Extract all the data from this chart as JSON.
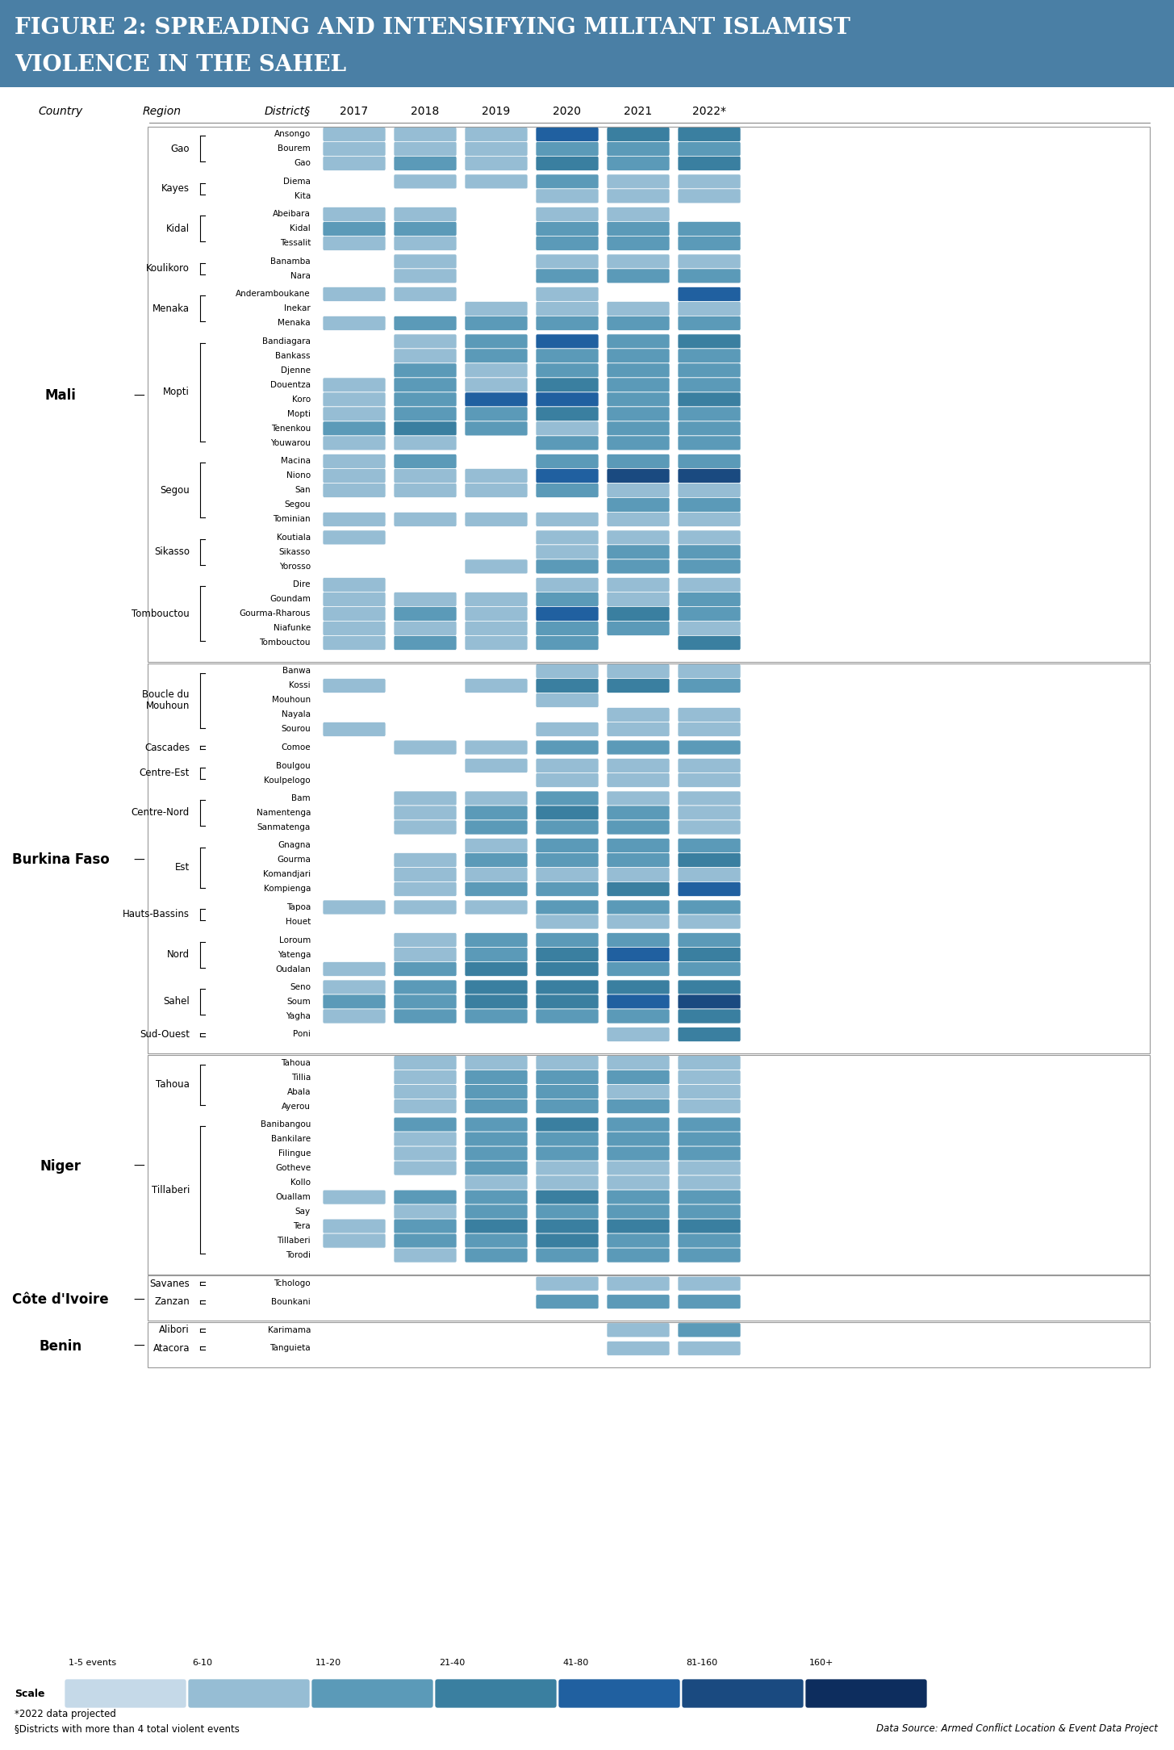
{
  "title_bg": "#4a7fa5",
  "title_fg": "#ffffff",
  "title_line1": "FIGURE 2: SPREADING AND INTENSIFYING MILITANT ISLAMIST",
  "title_line2": "VIOLENCE IN THE SAHEL",
  "years": [
    "2017",
    "2018",
    "2019",
    "2020",
    "2021",
    "2022*"
  ],
  "footnote1": "*2022 data projected",
  "footnote2": "§Districts with more than 4 total violent events",
  "datasource": "Data Source: Armed Conflict Location & Event Data Project",
  "scale_labels": [
    "1-5 events",
    "6-10",
    "11-20",
    "21-40",
    "41-80",
    "81-160",
    "160+"
  ],
  "scale_colors": [
    "#c5d9e8",
    "#96bdd4",
    "#5b9ab8",
    "#3a7fa0",
    "#2060a0",
    "#1a4a80",
    "#0d2d5e"
  ],
  "color_map": [
    null,
    "#c5d9e8",
    "#96bdd4",
    "#5b9ab8",
    "#3a7fa0",
    "#2060a0",
    "#1a4a80",
    "#0d2d5e"
  ],
  "countries": [
    {
      "name": "Mali",
      "regions": [
        {
          "name": "Gao",
          "districts": [
            {
              "name": "Ansongo",
              "values": [
                2,
                2,
                2,
                5,
                4,
                4
              ]
            },
            {
              "name": "Bourem",
              "values": [
                2,
                2,
                2,
                3,
                3,
                3
              ]
            },
            {
              "name": "Gao",
              "values": [
                2,
                3,
                2,
                4,
                3,
                4
              ]
            }
          ]
        },
        {
          "name": "Kayes",
          "districts": [
            {
              "name": "Diema",
              "values": [
                0,
                2,
                2,
                3,
                2,
                2
              ]
            },
            {
              "name": "Kita",
              "values": [
                0,
                0,
                0,
                2,
                2,
                2
              ]
            }
          ]
        },
        {
          "name": "Kidal",
          "districts": [
            {
              "name": "Abeibara",
              "values": [
                2,
                2,
                0,
                2,
                2,
                0
              ]
            },
            {
              "name": "Kidal",
              "values": [
                3,
                3,
                0,
                3,
                3,
                3
              ]
            },
            {
              "name": "Tessalit",
              "values": [
                2,
                2,
                0,
                3,
                3,
                3
              ]
            }
          ]
        },
        {
          "name": "Koulikoro",
          "districts": [
            {
              "name": "Banamba",
              "values": [
                0,
                2,
                0,
                2,
                2,
                2
              ]
            },
            {
              "name": "Nara",
              "values": [
                0,
                2,
                0,
                3,
                3,
                3
              ]
            }
          ]
        },
        {
          "name": "Menaka",
          "districts": [
            {
              "name": "Anderamboukane",
              "values": [
                2,
                2,
                0,
                2,
                0,
                5
              ]
            },
            {
              "name": "Inekar",
              "values": [
                0,
                0,
                2,
                2,
                2,
                2
              ]
            },
            {
              "name": "Menaka",
              "values": [
                2,
                3,
                3,
                3,
                3,
                3
              ]
            }
          ]
        },
        {
          "name": "Mopti",
          "districts": [
            {
              "name": "Bandiagara",
              "values": [
                0,
                2,
                3,
                5,
                3,
                4
              ]
            },
            {
              "name": "Bankass",
              "values": [
                0,
                2,
                3,
                3,
                3,
                3
              ]
            },
            {
              "name": "Djenne",
              "values": [
                0,
                3,
                2,
                3,
                3,
                3
              ]
            },
            {
              "name": "Douentza",
              "values": [
                2,
                3,
                2,
                4,
                3,
                3
              ]
            },
            {
              "name": "Koro",
              "values": [
                2,
                3,
                5,
                5,
                3,
                4
              ]
            },
            {
              "name": "Mopti",
              "values": [
                2,
                3,
                3,
                4,
                3,
                3
              ]
            },
            {
              "name": "Tenenkou",
              "values": [
                3,
                4,
                3,
                2,
                3,
                3
              ]
            },
            {
              "name": "Youwarou",
              "values": [
                2,
                2,
                0,
                3,
                3,
                3
              ]
            }
          ]
        },
        {
          "name": "Segou",
          "districts": [
            {
              "name": "Macina",
              "values": [
                2,
                3,
                0,
                3,
                3,
                3
              ]
            },
            {
              "name": "Niono",
              "values": [
                2,
                2,
                2,
                5,
                6,
                6
              ]
            },
            {
              "name": "San",
              "values": [
                2,
                2,
                2,
                3,
                2,
                2
              ]
            },
            {
              "name": "Segou",
              "values": [
                0,
                0,
                0,
                0,
                3,
                3
              ]
            },
            {
              "name": "Tominian",
              "values": [
                2,
                2,
                2,
                2,
                2,
                2
              ]
            }
          ]
        },
        {
          "name": "Sikasso",
          "districts": [
            {
              "name": "Koutiala",
              "values": [
                2,
                0,
                0,
                2,
                2,
                2
              ]
            },
            {
              "name": "Sikasso",
              "values": [
                0,
                0,
                0,
                2,
                3,
                3
              ]
            },
            {
              "name": "Yorosso",
              "values": [
                0,
                0,
                2,
                3,
                3,
                3
              ]
            }
          ]
        },
        {
          "name": "Tombouctou",
          "districts": [
            {
              "name": "Dire",
              "values": [
                2,
                0,
                0,
                2,
                2,
                2
              ]
            },
            {
              "name": "Goundam",
              "values": [
                2,
                2,
                2,
                3,
                2,
                3
              ]
            },
            {
              "name": "Gourma-Rharous",
              "values": [
                2,
                3,
                2,
                5,
                4,
                3
              ]
            },
            {
              "name": "Niafunke",
              "values": [
                2,
                2,
                2,
                3,
                3,
                2
              ]
            },
            {
              "name": "Tombouctou",
              "values": [
                2,
                3,
                2,
                3,
                0,
                4
              ]
            }
          ]
        }
      ]
    },
    {
      "name": "Burkina Faso",
      "regions": [
        {
          "name": "Boucle du\nMouhoun",
          "districts": [
            {
              "name": "Banwa",
              "values": [
                0,
                0,
                0,
                2,
                2,
                2
              ]
            },
            {
              "name": "Kossi",
              "values": [
                2,
                0,
                2,
                4,
                4,
                3
              ]
            },
            {
              "name": "Mouhoun",
              "values": [
                0,
                0,
                0,
                2,
                0,
                0
              ]
            },
            {
              "name": "Nayala",
              "values": [
                0,
                0,
                0,
                0,
                2,
                2
              ]
            },
            {
              "name": "Sourou",
              "values": [
                2,
                0,
                0,
                2,
                2,
                2
              ]
            }
          ]
        },
        {
          "name": "Cascades",
          "districts": [
            {
              "name": "Comoe",
              "values": [
                0,
                2,
                2,
                3,
                3,
                3
              ]
            }
          ]
        },
        {
          "name": "Centre-Est",
          "districts": [
            {
              "name": "Boulgou",
              "values": [
                0,
                0,
                2,
                2,
                2,
                2
              ]
            },
            {
              "name": "Koulpelogo",
              "values": [
                0,
                0,
                0,
                2,
                2,
                2
              ]
            }
          ]
        },
        {
          "name": "Centre-Nord",
          "districts": [
            {
              "name": "Bam",
              "values": [
                0,
                2,
                2,
                3,
                2,
                2
              ]
            },
            {
              "name": "Namentenga",
              "values": [
                0,
                2,
                3,
                4,
                3,
                2
              ]
            },
            {
              "name": "Sanmatenga",
              "values": [
                0,
                2,
                3,
                3,
                3,
                2
              ]
            }
          ]
        },
        {
          "name": "Est",
          "districts": [
            {
              "name": "Gnagna",
              "values": [
                0,
                0,
                2,
                3,
                3,
                3
              ]
            },
            {
              "name": "Gourma",
              "values": [
                0,
                2,
                3,
                3,
                3,
                4
              ]
            },
            {
              "name": "Komandjari",
              "values": [
                0,
                2,
                2,
                2,
                2,
                2
              ]
            },
            {
              "name": "Kompienga",
              "values": [
                0,
                2,
                3,
                3,
                4,
                5
              ]
            }
          ]
        },
        {
          "name": "Hauts-Bassins",
          "districts": [
            {
              "name": "Tapoa",
              "values": [
                2,
                2,
                2,
                3,
                3,
                3
              ]
            },
            {
              "name": "Houet",
              "values": [
                0,
                0,
                0,
                2,
                2,
                2
              ]
            }
          ]
        },
        {
          "name": "Nord",
          "districts": [
            {
              "name": "Loroum",
              "values": [
                0,
                2,
                3,
                3,
                3,
                3
              ]
            },
            {
              "name": "Yatenga",
              "values": [
                0,
                2,
                3,
                4,
                5,
                4
              ]
            },
            {
              "name": "Oudalan",
              "values": [
                2,
                3,
                4,
                4,
                3,
                3
              ]
            }
          ]
        },
        {
          "name": "Sahel",
          "districts": [
            {
              "name": "Seno",
              "values": [
                2,
                3,
                4,
                4,
                4,
                4
              ]
            },
            {
              "name": "Soum",
              "values": [
                3,
                3,
                4,
                4,
                5,
                6
              ]
            },
            {
              "name": "Yagha",
              "values": [
                2,
                3,
                3,
                3,
                3,
                4
              ]
            }
          ]
        },
        {
          "name": "Sud-Ouest",
          "districts": [
            {
              "name": "Poni",
              "values": [
                0,
                0,
                0,
                0,
                2,
                4
              ]
            }
          ]
        }
      ]
    },
    {
      "name": "Niger",
      "regions": [
        {
          "name": "Tahoua",
          "districts": [
            {
              "name": "Tahoua",
              "values": [
                0,
                2,
                2,
                2,
                2,
                2
              ]
            },
            {
              "name": "Tillia",
              "values": [
                0,
                2,
                3,
                3,
                3,
                2
              ]
            },
            {
              "name": "Abala",
              "values": [
                0,
                2,
                3,
                3,
                2,
                2
              ]
            },
            {
              "name": "Ayerou",
              "values": [
                0,
                2,
                3,
                3,
                3,
                2
              ]
            }
          ]
        },
        {
          "name": "Tillaberi",
          "districts": [
            {
              "name": "Banibangou",
              "values": [
                0,
                3,
                3,
                4,
                3,
                3
              ]
            },
            {
              "name": "Bankilare",
              "values": [
                0,
                2,
                3,
                3,
                3,
                3
              ]
            },
            {
              "name": "Filingue",
              "values": [
                0,
                2,
                3,
                3,
                3,
                3
              ]
            },
            {
              "name": "Gotheve",
              "values": [
                0,
                2,
                3,
                2,
                2,
                2
              ]
            },
            {
              "name": "Kollo",
              "values": [
                0,
                0,
                2,
                2,
                2,
                2
              ]
            },
            {
              "name": "Ouallam",
              "values": [
                2,
                3,
                3,
                4,
                3,
                3
              ]
            },
            {
              "name": "Say",
              "values": [
                0,
                2,
                3,
                3,
                3,
                3
              ]
            },
            {
              "name": "Tera",
              "values": [
                2,
                3,
                4,
                4,
                4,
                4
              ]
            },
            {
              "name": "Tillaberi",
              "values": [
                2,
                3,
                3,
                4,
                3,
                3
              ]
            },
            {
              "name": "Torodi",
              "values": [
                0,
                2,
                3,
                3,
                3,
                3
              ]
            }
          ]
        }
      ]
    },
    {
      "name": "Côte d'Ivoire",
      "regions": [
        {
          "name": "Savanes",
          "districts": [
            {
              "name": "Tchologo",
              "values": [
                0,
                0,
                0,
                2,
                2,
                2
              ]
            }
          ]
        },
        {
          "name": "Zanzan",
          "districts": [
            {
              "name": "Bounkani",
              "values": [
                0,
                0,
                0,
                3,
                3,
                3
              ]
            }
          ]
        }
      ]
    },
    {
      "name": "Benin",
      "regions": [
        {
          "name": "Alibori",
          "districts": [
            {
              "name": "Karimama",
              "values": [
                0,
                0,
                0,
                0,
                2,
                3
              ]
            }
          ]
        },
        {
          "name": "Atacora",
          "districts": [
            {
              "name": "Tanguieta",
              "values": [
                0,
                0,
                0,
                0,
                2,
                2
              ]
            }
          ]
        }
      ]
    }
  ]
}
